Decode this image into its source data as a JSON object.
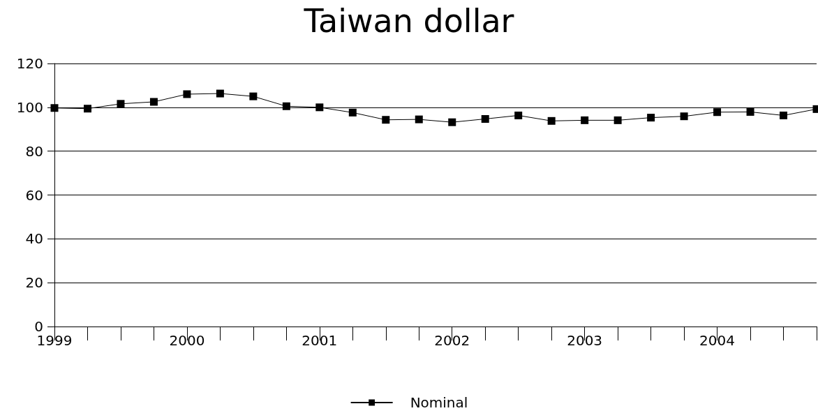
{
  "chart_data": {
    "type": "line",
    "title": "Taiwan dollar",
    "x": [
      1999,
      1999.25,
      1999.5,
      1999.75,
      2000,
      2000.25,
      2000.5,
      2000.75,
      2001,
      2001.25,
      2001.5,
      2001.75,
      2002,
      2002.25,
      2002.5,
      2002.75,
      2003,
      2003.25,
      2003.5,
      2003.75,
      2004,
      2004.25,
      2004.5,
      2004.75
    ],
    "series": [
      {
        "name": "Nominal",
        "color": "#000000",
        "values": [
          99.7,
          99.4,
          101.6,
          102.5,
          106,
          106.3,
          105,
          100.5,
          100,
          97.6,
          94.3,
          94.5,
          93.2,
          94.7,
          96.3,
          93.8,
          94.1,
          94.1,
          95.3,
          95.9,
          97.8,
          97.9,
          96.3,
          99.2
        ]
      }
    ],
    "xlim": [
      1999,
      2004.75
    ],
    "xticks": [
      1999,
      2000,
      2001,
      2002,
      2003,
      2004
    ],
    "ylim": [
      0,
      120
    ],
    "yticks": [
      0,
      20,
      40,
      60,
      80,
      100,
      120
    ],
    "grid": "y",
    "legend": "bottom",
    "marker": "square",
    "line_style": "solid"
  }
}
